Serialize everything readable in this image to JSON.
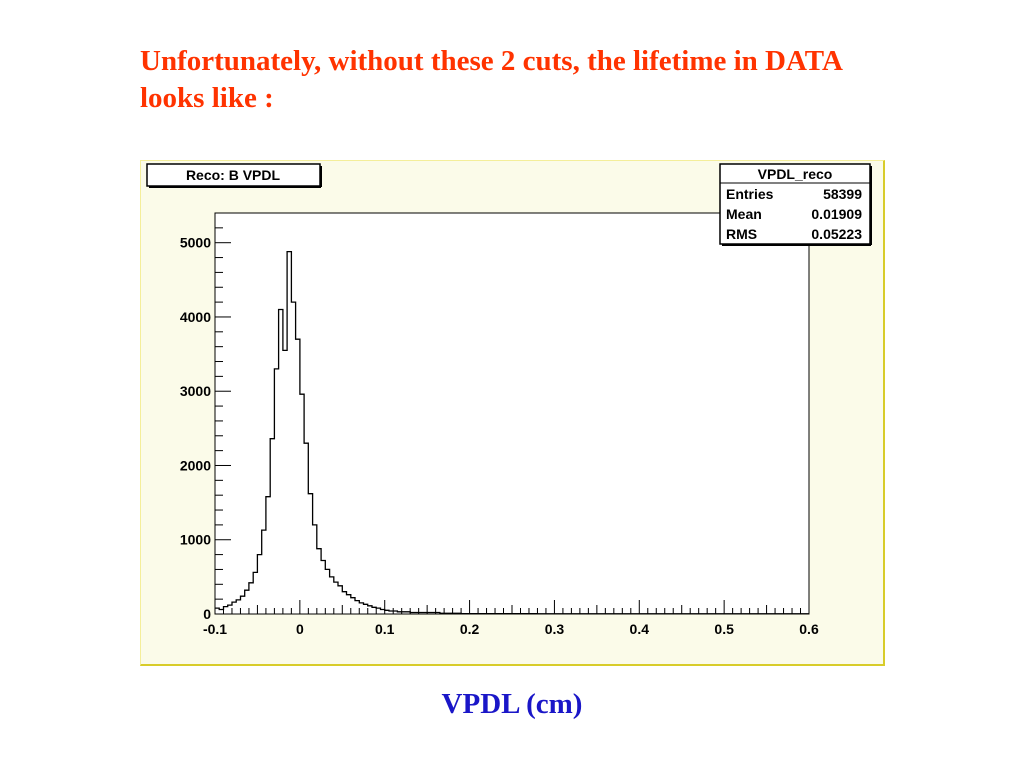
{
  "slide": {
    "title": "Unfortunately, without these 2 cuts, the lifetime in DATA looks like :",
    "x_caption": "VPDL (cm)",
    "title_color": "#ff3300",
    "caption_color": "#1a16c8"
  },
  "chart_data": {
    "type": "bar",
    "title": "Reco: B VPDL",
    "xlabel": "VPDL (cm)",
    "ylabel": "",
    "xlim": [
      -0.1,
      0.6
    ],
    "ylim": [
      0,
      5400
    ],
    "x_ticks": [
      -0.1,
      0,
      0.1,
      0.2,
      0.3,
      0.4,
      0.5,
      0.6
    ],
    "x_tick_labels": [
      "-0.1",
      "0",
      "0.1",
      "0.2",
      "0.3",
      "0.4",
      "0.5",
      "0.6"
    ],
    "y_ticks": [
      0,
      1000,
      2000,
      3000,
      4000,
      5000
    ],
    "y_tick_labels": [
      "0",
      "1000",
      "2000",
      "3000",
      "4000",
      "5000"
    ],
    "bin_width": 0.005,
    "bin_edges_start": -0.1,
    "values": [
      80,
      60,
      100,
      120,
      160,
      190,
      240,
      320,
      420,
      560,
      800,
      1130,
      1580,
      2360,
      3300,
      4100,
      3550,
      4880,
      4200,
      3700,
      2960,
      2300,
      1620,
      1200,
      880,
      720,
      600,
      500,
      430,
      380,
      300,
      260,
      220,
      180,
      150,
      130,
      110,
      90,
      80,
      60,
      50,
      40,
      40,
      30,
      30,
      30,
      20,
      20,
      20,
      20,
      20,
      20,
      20,
      10,
      10,
      10,
      10,
      10,
      5,
      5,
      5,
      5,
      5,
      5,
      5,
      5,
      5,
      5,
      5,
      5,
      5,
      5,
      5,
      5,
      5,
      5,
      3,
      3,
      3,
      3,
      3,
      3,
      3,
      3,
      3,
      3,
      3,
      3,
      3,
      3,
      3,
      3,
      3,
      3,
      3,
      3,
      3,
      3,
      3,
      3,
      3,
      3,
      3,
      3,
      3,
      3,
      3,
      3,
      3,
      3,
      3,
      3,
      3,
      3,
      3,
      3,
      3,
      3,
      3,
      3,
      3,
      3,
      3,
      3,
      3,
      3,
      3,
      3,
      3,
      3,
      3,
      3,
      3,
      3,
      3,
      3,
      3,
      3,
      3,
      3
    ],
    "grid": false,
    "legend": "none",
    "stats_box": {
      "name": "VPDL_reco",
      "rows": [
        {
          "label": "Entries",
          "value": "58399"
        },
        {
          "label": "Mean",
          "value": "0.01909"
        },
        {
          "label": "RMS",
          "value": "0.05223"
        }
      ]
    }
  }
}
